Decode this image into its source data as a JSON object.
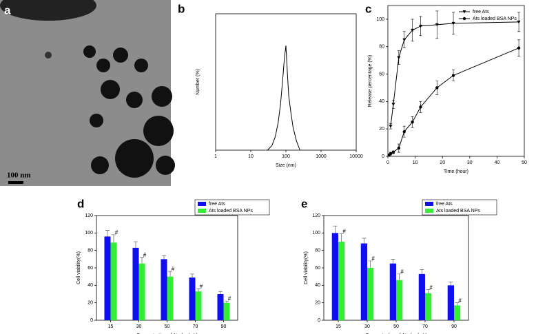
{
  "image": {
    "label": "a",
    "scale_bar": "100 nm"
  },
  "chart_data": [
    {
      "type": "line",
      "label": "b",
      "xlabel": "Size (nm)",
      "ylabel": "Number (%)",
      "xscale": "log",
      "xlim": [
        1,
        10000
      ],
      "xticks": [
        1,
        10,
        100,
        1000,
        10000
      ],
      "ylim": [
        0,
        30
      ],
      "series": [
        {
          "color": "#000000",
          "x": [
            30,
            40,
            50,
            60,
            70,
            80,
            90,
            100,
            110,
            120,
            140,
            160,
            200,
            250
          ],
          "values": [
            0,
            1,
            3,
            6,
            10,
            15,
            20,
            23,
            17,
            12,
            8,
            5,
            2,
            0
          ]
        }
      ]
    },
    {
      "type": "line",
      "label": "c",
      "xlabel": "Time (hour)",
      "ylabel": "Release percentage (%)",
      "xlim": [
        0,
        50
      ],
      "xticks": [
        0,
        10,
        20,
        30,
        40,
        50
      ],
      "ylim": [
        0,
        110
      ],
      "yticks": [
        0,
        20,
        40,
        60,
        80,
        100
      ],
      "series": [
        {
          "name": "free Ats",
          "color": "#000000",
          "marker": "triangle-down",
          "x": [
            1,
            2,
            4,
            6,
            9,
            12,
            18,
            24,
            48
          ],
          "values": [
            22,
            38,
            72,
            85,
            92,
            95,
            96,
            97,
            98
          ],
          "errors": [
            2,
            3,
            5,
            6,
            8,
            7,
            10,
            8,
            7
          ]
        },
        {
          "name": "Ats loaded BSA NPs",
          "color": "#000000",
          "marker": "circle",
          "x": [
            0.5,
            1,
            2,
            4,
            6,
            9,
            12,
            18,
            24,
            48
          ],
          "values": [
            1,
            2,
            3,
            6,
            18,
            25,
            36,
            50,
            59,
            79
          ],
          "errors": [
            0,
            1,
            1,
            3,
            4,
            4,
            4,
            5,
            4,
            6
          ]
        }
      ]
    },
    {
      "type": "bar",
      "label": "d",
      "xlabel": "Concentration of Ats (μg/mL)",
      "ylabel": "Cell viability(%)",
      "categories": [
        "15",
        "30",
        "50",
        "70",
        "90"
      ],
      "ylim": [
        0,
        120
      ],
      "yticks": [
        0,
        20,
        40,
        60,
        80,
        100,
        120
      ],
      "annotations": [
        "#",
        "#",
        "#",
        "#",
        "#"
      ],
      "series": [
        {
          "name": "free Ats",
          "color": "#1010ee",
          "values": [
            96,
            83,
            70,
            49,
            30
          ],
          "errors": [
            7,
            7,
            4,
            4,
            3
          ]
        },
        {
          "name": "Ats loaded BSA NPs",
          "color": "#33ee33",
          "values": [
            89,
            65,
            50,
            33,
            20
          ],
          "errors": [
            9,
            7,
            6,
            3,
            2
          ]
        }
      ]
    },
    {
      "type": "bar",
      "label": "e",
      "xlabel": "Concentration of Ats (μg/mL)",
      "ylabel": "Cell viability(%)",
      "categories": [
        "15",
        "30",
        "50",
        "70",
        "90"
      ],
      "ylim": [
        0,
        120
      ],
      "yticks": [
        0,
        20,
        40,
        60,
        80,
        100,
        120
      ],
      "annotations": [
        "#",
        "#",
        "#",
        "#",
        "#"
      ],
      "series": [
        {
          "name": "free Ats",
          "color": "#1010ee",
          "values": [
            100,
            88,
            65,
            53,
            40
          ],
          "errors": [
            8,
            6,
            5,
            5,
            4
          ]
        },
        {
          "name": "Ats loaded BSA NPs",
          "color": "#33ee33",
          "values": [
            90,
            60,
            46,
            31,
            17
          ],
          "errors": [
            9,
            8,
            7,
            4,
            3
          ]
        }
      ]
    }
  ]
}
